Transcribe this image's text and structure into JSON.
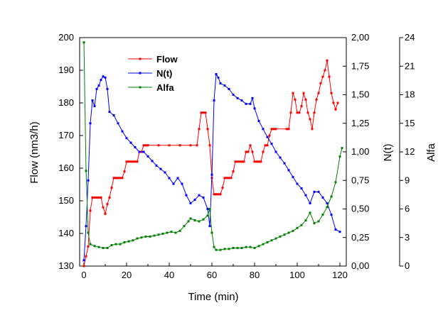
{
  "chart_data": {
    "type": "line",
    "xlabel": "Time (min)",
    "xlim": [
      -2,
      123
    ],
    "xticks": [
      0,
      20,
      40,
      60,
      80,
      100,
      120
    ],
    "xtick_labels": [
      "0",
      "20",
      "40",
      "60",
      "80",
      "100",
      "120"
    ],
    "axes": {
      "left": {
        "label": "Flow (nm3/h)",
        "lim": [
          130,
          200
        ],
        "ticks": [
          130,
          140,
          150,
          160,
          170,
          180,
          190,
          200
        ],
        "tick_labels": [
          "130",
          "140",
          "150",
          "160",
          "170",
          "180",
          "190",
          "200"
        ]
      },
      "right1": {
        "label": "N(t)",
        "lim": [
          0,
          2
        ],
        "ticks": [
          0,
          0.25,
          0.5,
          0.75,
          1,
          1.25,
          1.5,
          1.75,
          2
        ],
        "tick_labels": [
          "0,00",
          "0,25",
          "0,50",
          "0,75",
          "1,00",
          "1,25",
          "1,50",
          "1,75",
          "2,00"
        ]
      },
      "right2": {
        "label": "Alfa",
        "lim": [
          0,
          24
        ],
        "ticks": [
          0,
          3,
          6,
          9,
          12,
          15,
          18,
          21,
          24
        ],
        "tick_labels": [
          "0",
          "3",
          "6",
          "9",
          "12",
          "15",
          "18",
          "21",
          "24"
        ]
      }
    },
    "legend": {
      "position": "top-left",
      "entries": [
        "Flow",
        "N(t)",
        "Alfa"
      ]
    },
    "grid": false,
    "series": [
      {
        "name": "Flow",
        "color": "#ff0000",
        "axis": "left",
        "points": [
          [
            0,
            130
          ],
          [
            1,
            133
          ],
          [
            2,
            136
          ],
          [
            3,
            147
          ],
          [
            4,
            151
          ],
          [
            5,
            151
          ],
          [
            6,
            151
          ],
          [
            7,
            151
          ],
          [
            8,
            151
          ],
          [
            9,
            148
          ],
          [
            10,
            146
          ],
          [
            11,
            149
          ],
          [
            12,
            151
          ],
          [
            13,
            154
          ],
          [
            14,
            157
          ],
          [
            15,
            157
          ],
          [
            16,
            157
          ],
          [
            17,
            157
          ],
          [
            18,
            157
          ],
          [
            19,
            159
          ],
          [
            20,
            162
          ],
          [
            21,
            162
          ],
          [
            22,
            162
          ],
          [
            23,
            162
          ],
          [
            24,
            162
          ],
          [
            25,
            162
          ],
          [
            26,
            165
          ],
          [
            27,
            165
          ],
          [
            28,
            167
          ],
          [
            29,
            167
          ],
          [
            30,
            167
          ],
          [
            35,
            167
          ],
          [
            40,
            167
          ],
          [
            45,
            167
          ],
          [
            50,
            167
          ],
          [
            53,
            167
          ],
          [
            54,
            172
          ],
          [
            55,
            177
          ],
          [
            56,
            177
          ],
          [
            57,
            177
          ],
          [
            58,
            172
          ],
          [
            59,
            167
          ],
          [
            60,
            157
          ],
          [
            61,
            152
          ],
          [
            62,
            152
          ],
          [
            63,
            152
          ],
          [
            64,
            152
          ],
          [
            65,
            154
          ],
          [
            66,
            157
          ],
          [
            67,
            157
          ],
          [
            68,
            157
          ],
          [
            69,
            157
          ],
          [
            70,
            159
          ],
          [
            71,
            162
          ],
          [
            72,
            162
          ],
          [
            73,
            162
          ],
          [
            74,
            162
          ],
          [
            75,
            162
          ],
          [
            76,
            165
          ],
          [
            77,
            165
          ],
          [
            78,
            167
          ],
          [
            79,
            165
          ],
          [
            80,
            162
          ],
          [
            81,
            162
          ],
          [
            82,
            162
          ],
          [
            83,
            162
          ],
          [
            84,
            165
          ],
          [
            85,
            167
          ],
          [
            86,
            167
          ],
          [
            87,
            170
          ],
          [
            88,
            172
          ],
          [
            89,
            172
          ],
          [
            90,
            172
          ],
          [
            95,
            172
          ],
          [
            96,
            172
          ],
          [
            97,
            177
          ],
          [
            98,
            183
          ],
          [
            99,
            181
          ],
          [
            100,
            177
          ],
          [
            101,
            177
          ],
          [
            102,
            179
          ],
          [
            103,
            183
          ],
          [
            104,
            181
          ],
          [
            105,
            177
          ],
          [
            106,
            175
          ],
          [
            107,
            172
          ],
          [
            108,
            177
          ],
          [
            109,
            181
          ],
          [
            110,
            183
          ],
          [
            111,
            186
          ],
          [
            112,
            188
          ],
          [
            113,
            190
          ],
          [
            114,
            193
          ],
          [
            115,
            188
          ],
          [
            116,
            183
          ],
          [
            117,
            180
          ],
          [
            118,
            178
          ],
          [
            119,
            180
          ]
        ]
      },
      {
        "name": "N(t)",
        "color": "#0000ff",
        "axis": "right1",
        "points": [
          [
            0,
            0.05
          ],
          [
            1,
            0.35
          ],
          [
            2,
            0.75
          ],
          [
            3,
            1.25
          ],
          [
            4,
            1.45
          ],
          [
            5,
            1.4
          ],
          [
            6,
            1.55
          ],
          [
            7,
            1.58
          ],
          [
            8,
            1.63
          ],
          [
            9,
            1.66
          ],
          [
            10,
            1.65
          ],
          [
            11,
            1.55
          ],
          [
            12,
            1.35
          ],
          [
            14,
            1.32
          ],
          [
            16,
            1.25
          ],
          [
            18,
            1.18
          ],
          [
            20,
            1.12
          ],
          [
            22,
            1.08
          ],
          [
            24,
            1.04
          ],
          [
            26,
            1.0
          ],
          [
            28,
            1.0
          ],
          [
            30,
            0.96
          ],
          [
            32,
            0.92
          ],
          [
            34,
            0.88
          ],
          [
            36,
            0.85
          ],
          [
            38,
            0.82
          ],
          [
            40,
            0.77
          ],
          [
            42,
            0.72
          ],
          [
            44,
            0.77
          ],
          [
            46,
            0.72
          ],
          [
            48,
            0.62
          ],
          [
            50,
            0.55
          ],
          [
            52,
            0.58
          ],
          [
            54,
            0.62
          ],
          [
            56,
            0.6
          ],
          [
            58,
            0.5
          ],
          [
            59,
            0.35
          ],
          [
            60,
            0.8
          ],
          [
            61,
            1.45
          ],
          [
            62,
            1.68
          ],
          [
            63,
            1.65
          ],
          [
            64,
            1.6
          ],
          [
            66,
            1.58
          ],
          [
            68,
            1.55
          ],
          [
            70,
            1.5
          ],
          [
            72,
            1.47
          ],
          [
            74,
            1.45
          ],
          [
            76,
            1.42
          ],
          [
            78,
            1.42
          ],
          [
            79,
            1.47
          ],
          [
            80,
            1.38
          ],
          [
            82,
            1.27
          ],
          [
            84,
            1.2
          ],
          [
            86,
            1.13
          ],
          [
            88,
            1.07
          ],
          [
            90,
            1.0
          ],
          [
            92,
            0.95
          ],
          [
            94,
            0.9
          ],
          [
            96,
            0.84
          ],
          [
            98,
            0.78
          ],
          [
            100,
            0.72
          ],
          [
            102,
            0.68
          ],
          [
            104,
            0.62
          ],
          [
            106,
            0.55
          ],
          [
            108,
            0.65
          ],
          [
            110,
            0.65
          ],
          [
            112,
            0.6
          ],
          [
            114,
            0.55
          ],
          [
            116,
            0.45
          ],
          [
            118,
            0.32
          ],
          [
            120,
            0.3
          ]
        ]
      },
      {
        "name": "Alfa",
        "color": "#008000",
        "axis": "right2",
        "points": [
          [
            0,
            23.5
          ],
          [
            1,
            10
          ],
          [
            2,
            3.5
          ],
          [
            3,
            2.3
          ],
          [
            5,
            2.1
          ],
          [
            7,
            2.0
          ],
          [
            9,
            1.9
          ],
          [
            11,
            1.9
          ],
          [
            13,
            2.2
          ],
          [
            15,
            2.3
          ],
          [
            17,
            2.3
          ],
          [
            19,
            2.5
          ],
          [
            21,
            2.6
          ],
          [
            23,
            2.7
          ],
          [
            25,
            2.9
          ],
          [
            27,
            3.0
          ],
          [
            29,
            3.1
          ],
          [
            31,
            3.1
          ],
          [
            33,
            3.2
          ],
          [
            35,
            3.3
          ],
          [
            37,
            3.4
          ],
          [
            39,
            3.5
          ],
          [
            41,
            3.6
          ],
          [
            43,
            3.5
          ],
          [
            45,
            3.7
          ],
          [
            47,
            4.2
          ],
          [
            49,
            4.7
          ],
          [
            50,
            5.0
          ],
          [
            52,
            4.8
          ],
          [
            54,
            4.7
          ],
          [
            56,
            4.9
          ],
          [
            58,
            5.3
          ],
          [
            59,
            6.0
          ],
          [
            60,
            3.5
          ],
          [
            61,
            2.0
          ],
          [
            62,
            1.7
          ],
          [
            64,
            1.7
          ],
          [
            66,
            1.8
          ],
          [
            68,
            1.8
          ],
          [
            70,
            1.9
          ],
          [
            72,
            1.9
          ],
          [
            74,
            1.9
          ],
          [
            76,
            2.0
          ],
          [
            78,
            2.0
          ],
          [
            80,
            1.9
          ],
          [
            82,
            2.1
          ],
          [
            84,
            2.3
          ],
          [
            86,
            2.5
          ],
          [
            88,
            2.7
          ],
          [
            90,
            2.9
          ],
          [
            92,
            3.1
          ],
          [
            94,
            3.3
          ],
          [
            96,
            3.5
          ],
          [
            98,
            3.7
          ],
          [
            100,
            4.0
          ],
          [
            102,
            4.3
          ],
          [
            104,
            4.8
          ],
          [
            106,
            5.6
          ],
          [
            108,
            4.5
          ],
          [
            110,
            4.7
          ],
          [
            112,
            5.4
          ],
          [
            114,
            6.2
          ],
          [
            116,
            7.3
          ],
          [
            118,
            8.8
          ],
          [
            120,
            11.5
          ],
          [
            121,
            12.4
          ]
        ]
      }
    ]
  }
}
